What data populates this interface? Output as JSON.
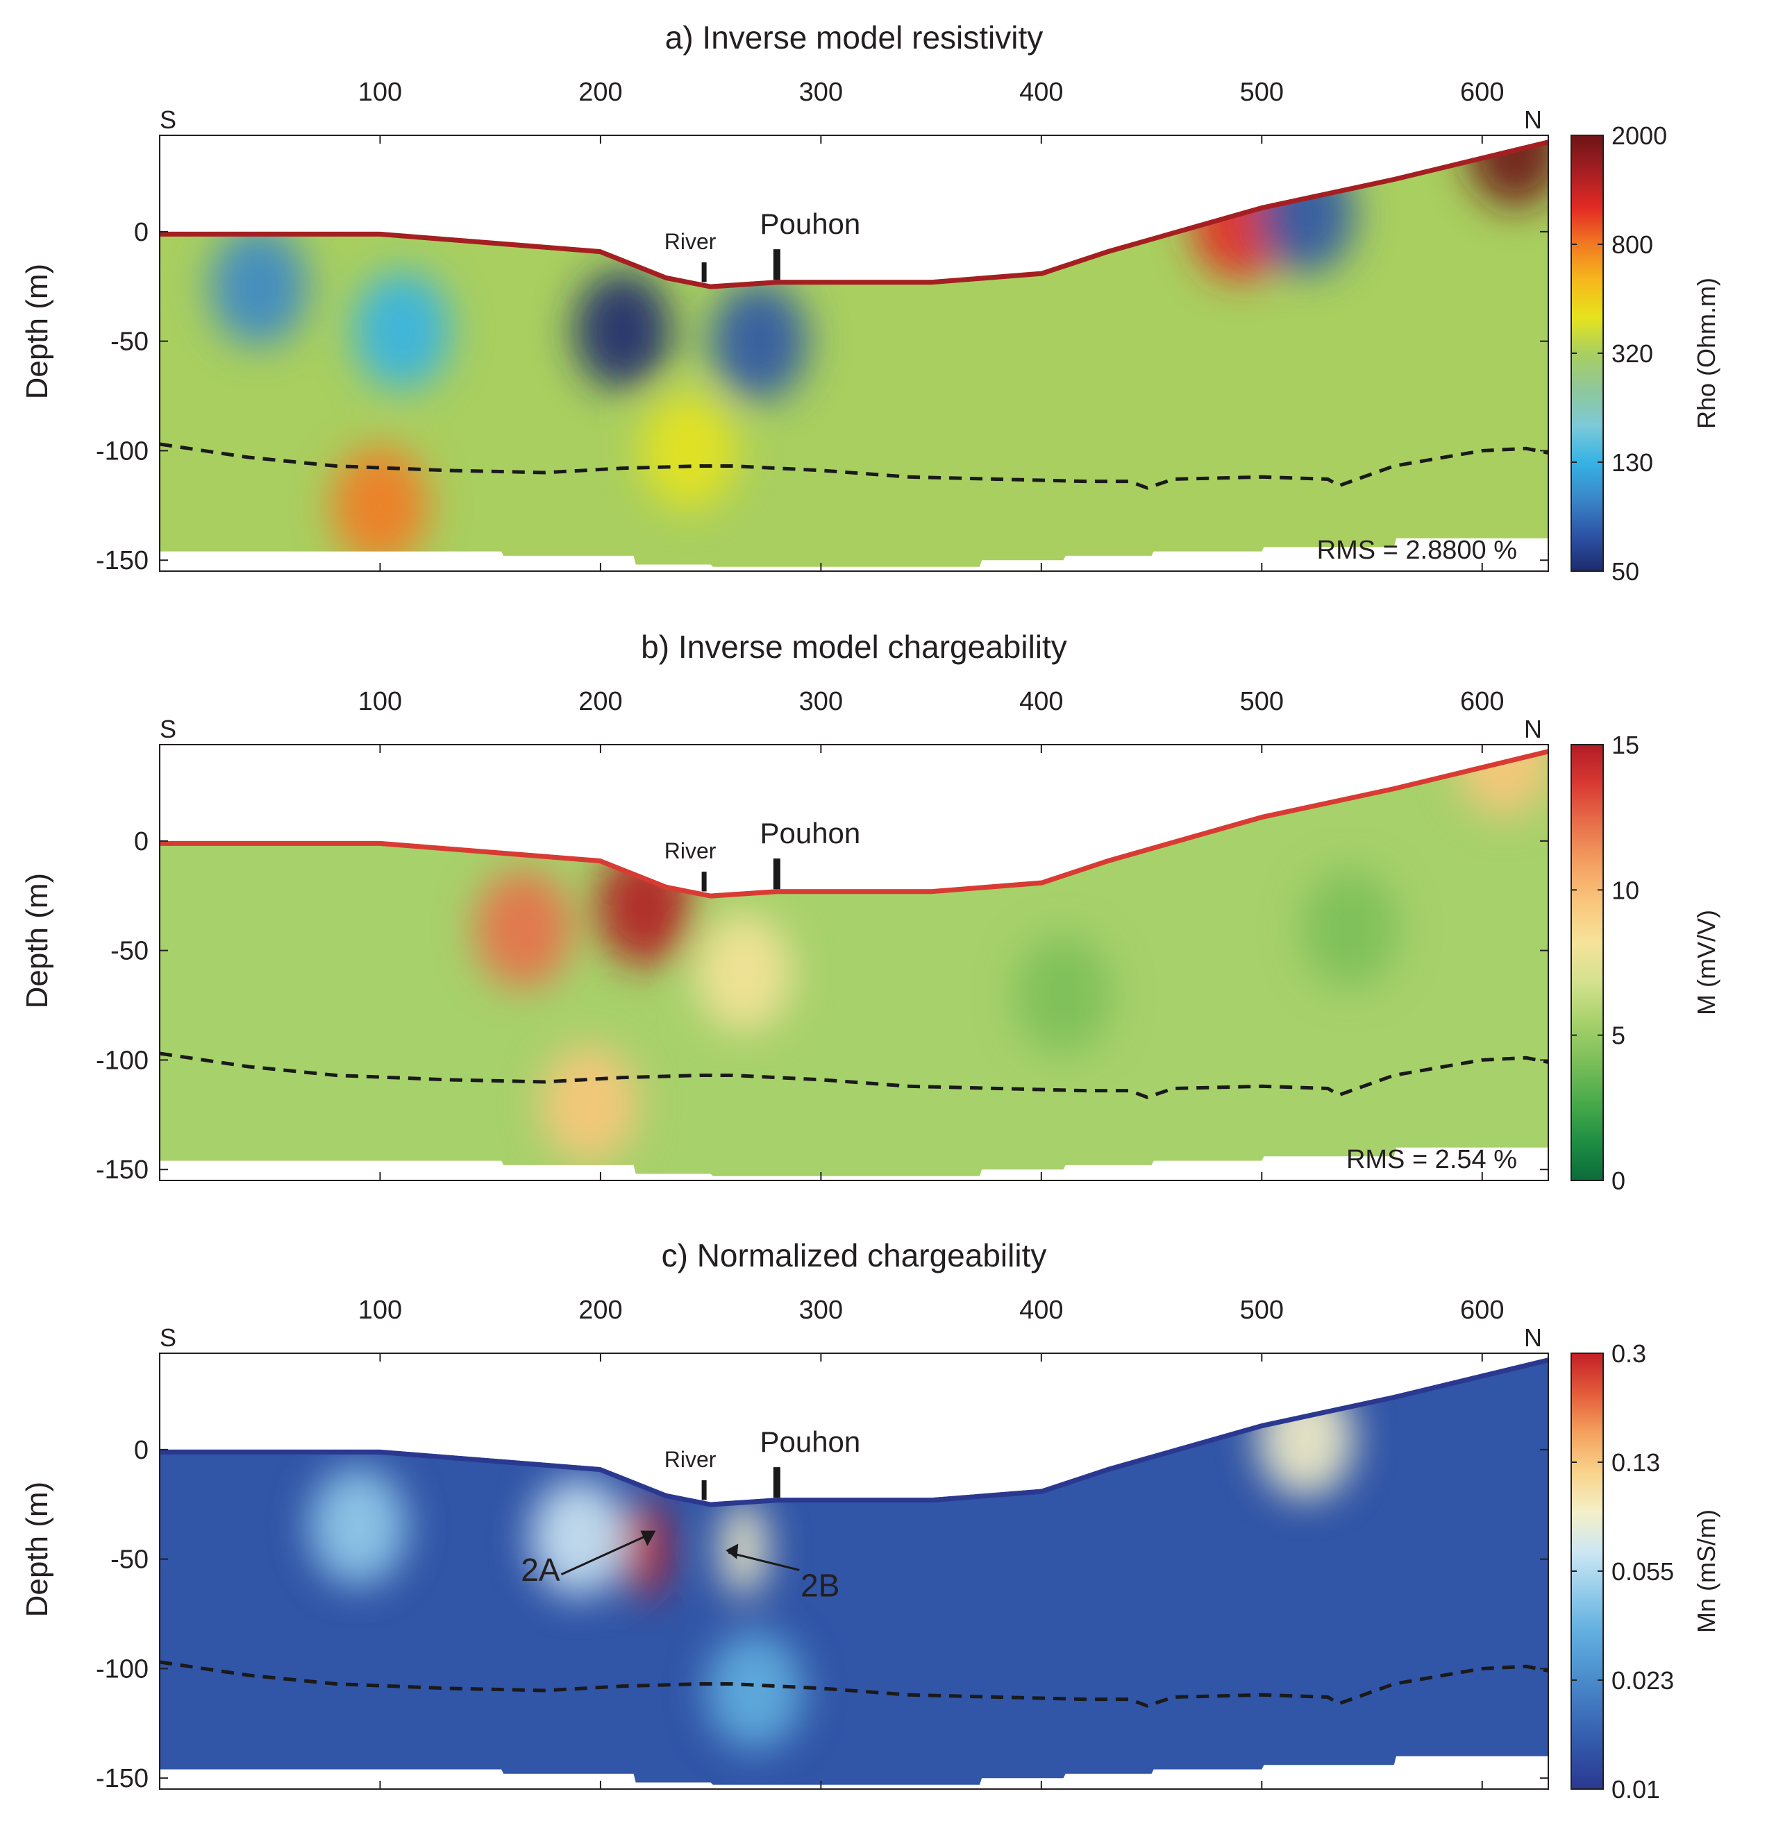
{
  "figure": {
    "panels": [
      {
        "id": "a",
        "title": "a) Inverse model resistivity",
        "xticks": [
          100,
          200,
          300,
          400,
          500,
          600
        ],
        "yticks": [
          0,
          -50,
          -100,
          -150
        ],
        "ylabel": "Depth (m)",
        "direction_left": "S",
        "direction_right": "N",
        "river_label": "River",
        "pouhon_label": "Pouhon",
        "rms": "RMS = 2.8800 %",
        "colorbar": {
          "label": "Rho (Ohm.m)",
          "ticks": [
            "2000",
            "800",
            "320",
            "130",
            "50"
          ]
        },
        "annotations": []
      },
      {
        "id": "b",
        "title": "b) Inverse model chargeability",
        "xticks": [
          100,
          200,
          300,
          400,
          500,
          600
        ],
        "yticks": [
          0,
          -50,
          -100,
          -150
        ],
        "ylabel": "Depth (m)",
        "direction_left": "S",
        "direction_right": "N",
        "river_label": "River",
        "pouhon_label": "Pouhon",
        "rms": "RMS = 2.54 %",
        "colorbar": {
          "label": "M (mV/V)",
          "ticks": [
            "15",
            "10",
            "5",
            "0"
          ]
        },
        "annotations": []
      },
      {
        "id": "c",
        "title": "c) Normalized chargeability",
        "xticks": [
          100,
          200,
          300,
          400,
          500,
          600
        ],
        "yticks": [
          0,
          -50,
          -100,
          -150
        ],
        "ylabel": "Depth (m)",
        "direction_left": "S",
        "direction_right": "N",
        "river_label": "River",
        "pouhon_label": "Pouhon",
        "rms": "",
        "colorbar": {
          "label": "Mn (mS/m)",
          "ticks": [
            "0.3",
            "0.13",
            "0.055",
            "0.023",
            "0.01"
          ]
        },
        "annotations": [
          {
            "label": "2A"
          },
          {
            "label": "2B"
          }
        ]
      }
    ]
  },
  "chart_data": {
    "type": "heatmap",
    "x_range": [
      0,
      630
    ],
    "y_range": [
      -155,
      44
    ],
    "x_unit": "m",
    "depth_unit": "m",
    "river_x": 247,
    "pouhon_x": 280,
    "surface_profile": {
      "x": [
        0,
        20,
        100,
        200,
        230,
        250,
        280,
        350,
        400,
        430,
        500,
        560,
        630
      ],
      "y": [
        0,
        0,
        0,
        -8,
        -20,
        -24,
        -22,
        -22,
        -18,
        -8,
        12,
        25,
        42
      ]
    },
    "bottom_profile": {
      "x": [
        0,
        155,
        156,
        215,
        216,
        250,
        251,
        372,
        373,
        410,
        411,
        450,
        451,
        500,
        501,
        560,
        561,
        630
      ],
      "y": [
        -146,
        -146,
        -148,
        -148,
        -152,
        -152,
        -153,
        -153,
        -150,
        -150,
        -148,
        -148,
        -146,
        -146,
        -144,
        -144,
        -140,
        -140
      ]
    },
    "dashed_boundary": {
      "x": [
        0,
        40,
        80,
        130,
        175,
        210,
        245,
        260,
        300,
        340,
        380,
        420,
        440,
        448,
        460,
        500,
        530,
        535,
        560,
        600,
        620,
        630
      ],
      "y": [
        -97,
        -103,
        -107,
        -109,
        -110,
        -108,
        -107,
        -107,
        -109,
        -112,
        -113,
        -114,
        -114,
        -117,
        -113,
        -112,
        -113,
        -116,
        -107,
        -100,
        -99,
        -101
      ]
    },
    "series": [
      {
        "name": "Resistivity",
        "unit": "Ohm.m",
        "scale": "log",
        "colorbar_ticks": [
          2000,
          800,
          320,
          130,
          50
        ],
        "background": 300,
        "anomalies": [
          {
            "x": 45,
            "y": -25,
            "value": 90
          },
          {
            "x": 110,
            "y": -45,
            "value": 140
          },
          {
            "x": 210,
            "y": -45,
            "value": 55
          },
          {
            "x": 272,
            "y": -50,
            "value": 70
          },
          {
            "x": 100,
            "y": -125,
            "value": 700
          },
          {
            "x": 240,
            "y": -100,
            "value": 480
          },
          {
            "x": 490,
            "y": 5,
            "value": 1200
          },
          {
            "x": 520,
            "y": 8,
            "value": 60
          },
          {
            "x": 615,
            "y": 38,
            "value": 2000
          }
        ],
        "rms_percent": 2.88
      },
      {
        "name": "Chargeability",
        "unit": "mV/V",
        "scale": "linear",
        "colorbar_ticks": [
          15,
          10,
          5,
          0
        ],
        "background": 5,
        "anomalies": [
          {
            "x": 165,
            "y": -40,
            "value": 12
          },
          {
            "x": 220,
            "y": -30,
            "value": 14.5
          },
          {
            "x": 265,
            "y": -60,
            "value": 8
          },
          {
            "x": 195,
            "y": -120,
            "value": 9.5
          },
          {
            "x": 410,
            "y": -70,
            "value": 4
          },
          {
            "x": 540,
            "y": -40,
            "value": 4
          },
          {
            "x": 610,
            "y": 38,
            "value": 10
          }
        ],
        "rms_percent": 2.54
      },
      {
        "name": "Normalized chargeability",
        "unit": "mS/m",
        "scale": "log",
        "colorbar_ticks": [
          0.3,
          0.13,
          0.055,
          0.023,
          0.01
        ],
        "background": 0.014,
        "anomalies": [
          {
            "x": 220,
            "y": -45,
            "value": 0.3,
            "label": "2A"
          },
          {
            "x": 265,
            "y": -45,
            "value": 0.09,
            "label": "2B"
          },
          {
            "x": 90,
            "y": -35,
            "value": 0.045
          },
          {
            "x": 270,
            "y": -110,
            "value": 0.035
          },
          {
            "x": 520,
            "y": 5,
            "value": 0.09
          },
          {
            "x": 190,
            "y": -40,
            "value": 0.06
          }
        ]
      }
    ]
  }
}
